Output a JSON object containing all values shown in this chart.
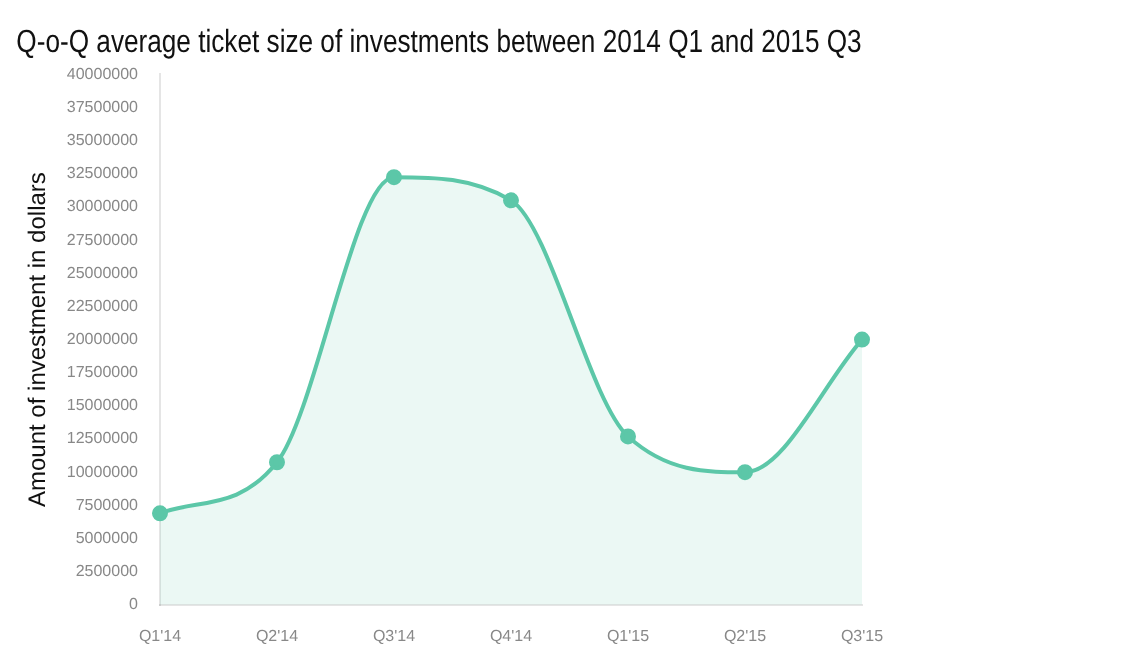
{
  "chart_data": {
    "type": "area",
    "title": "Q-o-Q average ticket size of investments between 2014 Q1 and 2015 Q3",
    "ylabel": "Amount of investment in dollars",
    "categories": [
      "Q1'14",
      "Q2'14",
      "Q3'14",
      "Q4'14",
      "Q1'15",
      "Q2'15",
      "Q3'15"
    ],
    "series": [
      {
        "color": "#5cc7a8",
        "values": [
          6900000,
          10750000,
          32250000,
          30500000,
          12700000,
          10000000,
          20000000
        ]
      }
    ],
    "ylim": [
      0,
      40000000
    ],
    "yticks": [
      0,
      2500000,
      5000000,
      7500000,
      10000000,
      12500000,
      15000000,
      17500000,
      20000000,
      22500000,
      25000000,
      27500000,
      30000000,
      32500000,
      35000000,
      37500000,
      40000000
    ],
    "grid": false,
    "legend": false,
    "marker": "circle"
  }
}
